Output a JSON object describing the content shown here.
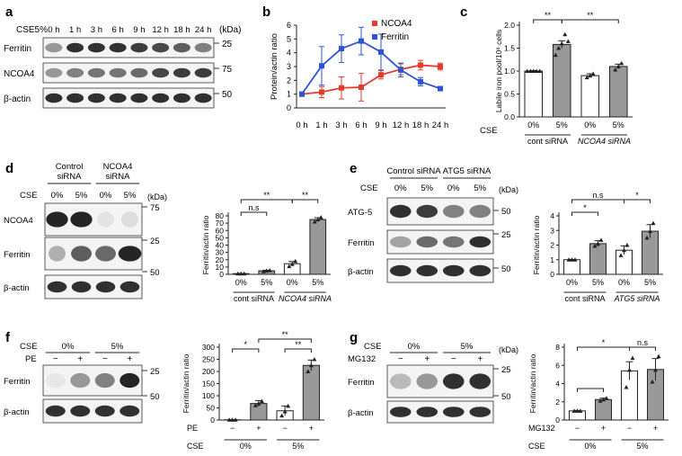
{
  "panels": {
    "a": {
      "letter": "a",
      "condition_label": "CSE5%",
      "timepoints": [
        "0 h",
        "1 h",
        "3 h",
        "6 h",
        "9 h",
        "12 h",
        "18 h",
        "24 h"
      ],
      "kda_unit": "(kDa)",
      "rows": [
        {
          "protein": "Ferritin",
          "marker": "25"
        },
        {
          "protein": "NCOA4",
          "marker": "75"
        },
        {
          "protein": "β-actin",
          "marker": "50"
        }
      ]
    },
    "d": {
      "letter": "d",
      "group_labels": [
        "Control siRNA",
        "NCOA4 siRNA"
      ],
      "cse_label": "CSE",
      "lanes": [
        "0%",
        "5%",
        "0%",
        "5%"
      ],
      "kda_unit": "(kDa)",
      "rows": [
        {
          "protein": "NCOA4",
          "marker": "75"
        },
        {
          "protein": "Ferritin",
          "marker": "25"
        },
        {
          "protein": "β-actin",
          "marker": "50"
        }
      ]
    },
    "e": {
      "letter": "e",
      "group_labels": [
        "Control siRNA",
        "ATG5 siRNA"
      ],
      "cse_label": "CSE",
      "lanes": [
        "0%",
        "5%",
        "0%",
        "5%"
      ],
      "kda_unit": "(kDa)",
      "rows": [
        {
          "protein": "ATG-5",
          "marker": "50"
        },
        {
          "protein": "Ferritin",
          "marker": "25"
        },
        {
          "protein": "β-actin",
          "marker": "50"
        }
      ]
    },
    "f": {
      "letter": "f",
      "cse_label": "CSE",
      "pe_label": "PE",
      "cse_groups": [
        "0%",
        "5%"
      ],
      "pe_marks": [
        "−",
        "+",
        "−",
        "+"
      ],
      "rows": [
        {
          "protein": "Ferritin",
          "marker": "25"
        },
        {
          "protein": "β-actin",
          "marker": "50"
        }
      ]
    },
    "g": {
      "letter": "g",
      "cse_label": "CSE",
      "mg_label": "MG132",
      "cse_groups": [
        "0%",
        "5%"
      ],
      "mg_marks": [
        "−",
        "+",
        "−",
        "+"
      ],
      "kda_unit": "(kDa)",
      "rows": [
        {
          "protein": "Ferritin",
          "marker": "25"
        },
        {
          "protein": "β-actin",
          "marker": "50"
        }
      ]
    }
  },
  "chart_data": [
    {
      "panel": "b",
      "type": "line",
      "ylabel": "Protein/actin ratio",
      "categories": [
        "0 h",
        "1 h",
        "3 h",
        "6 h",
        "9 h",
        "12 h",
        "18 h",
        "24 h"
      ],
      "ylim": [
        0,
        6
      ],
      "yticks": [
        0,
        1,
        2,
        3,
        4,
        5,
        6
      ],
      "legend": "top-right",
      "series": [
        {
          "name": "NCOA4",
          "color": "#e53b2c",
          "values": [
            1.0,
            1.15,
            1.45,
            1.5,
            2.4,
            2.8,
            3.1,
            3.0
          ],
          "errors": [
            0,
            0.4,
            0.8,
            1.0,
            0.3,
            0.4,
            0.35,
            0.25
          ]
        },
        {
          "name": "Ferritin",
          "color": "#2c54d6",
          "values": [
            1.0,
            3.05,
            4.3,
            4.85,
            4.05,
            2.75,
            1.9,
            1.4
          ],
          "errors": [
            0,
            1.4,
            1.0,
            1.0,
            1.3,
            0.5,
            0.3,
            0.1
          ]
        }
      ]
    },
    {
      "panel": "c",
      "type": "bar",
      "ylabel": "Labile iron pool/10⁶ cells",
      "row_label": "CSE",
      "categories": [
        "0%",
        "5%",
        "0%",
        "5%"
      ],
      "groups": [
        "cont siRNA",
        "NCOA4 siRNA"
      ],
      "ylim": [
        0,
        2.0
      ],
      "yticks": [
        0.0,
        0.5,
        1.0,
        1.5,
        2.0
      ],
      "values": [
        1.0,
        1.58,
        0.9,
        1.1
      ],
      "errors": [
        0.01,
        0.08,
        0.04,
        0.05
      ],
      "fills": [
        "#ffffff",
        "#999999",
        "#ffffff",
        "#999999"
      ],
      "points": [
        [
          1,
          1,
          1,
          1,
          1
        ],
        [
          1.35,
          1.5,
          1.6,
          1.8,
          1.65
        ],
        [
          0.86,
          0.9,
          0.94
        ],
        [
          1.03,
          1.1,
          1.17
        ]
      ],
      "significance": [
        {
          "from": 0,
          "to": 1,
          "label": "**"
        },
        {
          "from": 1,
          "to": 3,
          "label": "**"
        }
      ]
    },
    {
      "panel": "d",
      "type": "bar",
      "ylabel": "Ferritin/actin ratio",
      "categories": [
        "0%",
        "5%",
        "0%",
        "5%"
      ],
      "groups": [
        "cont siRNA",
        "NCOA4 siRNA"
      ],
      "ylim": [
        0,
        80
      ],
      "yticks": [
        0,
        10,
        20,
        30,
        40,
        50,
        60,
        70,
        80
      ],
      "values": [
        1.0,
        4.8,
        14.5,
        75.0
      ],
      "errors": [
        0.2,
        0.7,
        3.0,
        2.5
      ],
      "fills": [
        "#ffffff",
        "#999999",
        "#ffffff",
        "#999999"
      ],
      "points": [
        [
          1,
          1,
          1
        ],
        [
          4,
          5,
          5.5
        ],
        [
          11,
          14,
          18
        ],
        [
          72,
          75,
          78
        ]
      ],
      "significance": [
        {
          "from": 0,
          "to": 1,
          "label": "n.s"
        },
        {
          "from": 0,
          "to": 2,
          "label": "**"
        },
        {
          "from": 2,
          "to": 3,
          "label": "**"
        }
      ]
    },
    {
      "panel": "e",
      "type": "bar",
      "ylabel": "Ferritin/actin ratio",
      "categories": [
        "0%",
        "5%",
        "0%",
        "5%"
      ],
      "groups": [
        "cont siRNA",
        "ATG5 siRNA"
      ],
      "ylim": [
        0,
        4
      ],
      "yticks": [
        0,
        1,
        2,
        3,
        4
      ],
      "values": [
        1.0,
        2.1,
        1.65,
        2.95
      ],
      "errors": [
        0.02,
        0.2,
        0.3,
        0.45
      ],
      "fills": [
        "#ffffff",
        "#999999",
        "#ffffff",
        "#999999"
      ],
      "points": [
        [
          1,
          1,
          1
        ],
        [
          1.95,
          2.1,
          2.35
        ],
        [
          1.3,
          1.65,
          2.0
        ],
        [
          2.5,
          2.95,
          3.5
        ]
      ],
      "significance": [
        {
          "from": 0,
          "to": 1,
          "label": "*"
        },
        {
          "from": 0,
          "to": 2,
          "label": "n.s"
        },
        {
          "from": 2,
          "to": 3,
          "label": "*"
        }
      ]
    },
    {
      "panel": "f",
      "type": "bar",
      "ylabel": "Ferritin/actin ratio",
      "row_labels": [
        "PE",
        "CSE"
      ],
      "categories": [
        "−",
        "+",
        "−",
        "+"
      ],
      "groups": [
        "0%",
        "5%"
      ],
      "ylim": [
        0,
        300
      ],
      "yticks": [
        0,
        50,
        100,
        150,
        200,
        250,
        300
      ],
      "values": [
        1.0,
        68.0,
        38.0,
        225.0
      ],
      "errors": [
        0.5,
        12.0,
        20.0,
        22.0
      ],
      "fills": [
        "#ffffff",
        "#999999",
        "#ffffff",
        "#999999"
      ],
      "points": [
        [
          1,
          1,
          1
        ],
        [
          60,
          68,
          78
        ],
        [
          18,
          35,
          58
        ],
        [
          200,
          225,
          250
        ]
      ],
      "significance": [
        {
          "from": 0,
          "to": 1,
          "label": "*"
        },
        {
          "from": 2,
          "to": 3,
          "label": "**"
        },
        {
          "from": 1,
          "to": 3,
          "label": "**"
        }
      ]
    },
    {
      "panel": "g",
      "type": "bar",
      "ylabel": "Ferritin/actin ratio",
      "row_labels": [
        "MG132",
        "CSE"
      ],
      "categories": [
        "−",
        "+",
        "−",
        "+"
      ],
      "groups": [
        "0%",
        "5%"
      ],
      "ylim": [
        0,
        8
      ],
      "yticks": [
        0,
        2,
        4,
        6,
        8
      ],
      "values": [
        1.0,
        2.25,
        5.4,
        5.55
      ],
      "errors": [
        0.05,
        0.15,
        1.0,
        1.2
      ],
      "fills": [
        "#ffffff",
        "#999999",
        "#ffffff",
        "#999999"
      ],
      "points": [
        [
          1,
          1,
          1
        ],
        [
          2.1,
          2.25,
          2.4
        ],
        [
          3.6,
          5.5,
          6.8
        ],
        [
          4.2,
          5.5,
          7.0
        ]
      ],
      "significance": [
        {
          "from": 0,
          "to": 1,
          "label": ""
        },
        {
          "from": 0,
          "to": 2,
          "label": "*"
        },
        {
          "from": 2,
          "to": 3,
          "label": "n.s"
        }
      ]
    }
  ]
}
